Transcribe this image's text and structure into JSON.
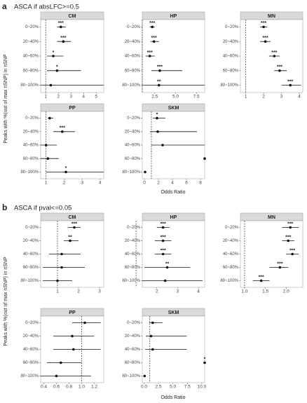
{
  "chart_data": [
    {
      "type": "forest",
      "letter": "a",
      "title": "ASCA if absLFC>=0.5",
      "ylabel": "Peaks with %(out of max nSNP) in nSNP",
      "xlabel": "Odds Ratio",
      "categories": [
        "0~20%",
        "20~40%",
        "40~60%",
        "60~80%",
        "80~100%"
      ],
      "panels": [
        {
          "strip": "CM",
          "xlim": [
            0.6,
            5.6
          ],
          "xticks": [
            1,
            2,
            3,
            4,
            5
          ],
          "refline": 1,
          "values": [
            2.2,
            2.4,
            1.6,
            1.9,
            1.4
          ],
          "lower": [
            1.9,
            1.9,
            1.1,
            1.1,
            0.6
          ],
          "upper": [
            2.6,
            3.0,
            2.4,
            3.8,
            5.6
          ],
          "annotations": [
            "***",
            "***",
            "*",
            "*",
            null
          ]
        },
        {
          "strip": "HP",
          "xlim": [
            1.0,
            8.5
          ],
          "xticks": [
            2.5,
            {
              "value": 5,
              "label": "5.0"
            },
            7.5
          ],
          "refline": 1,
          "values": [
            2.2,
            2.4,
            1.9,
            3.1,
            3.0
          ],
          "lower": [
            1.9,
            2.0,
            1.4,
            2.1,
            1.0
          ],
          "upper": [
            2.5,
            3.0,
            2.5,
            5.8,
            8.5
          ],
          "annotations": [
            "***",
            "***",
            "***",
            "***",
            "**"
          ]
        },
        {
          "strip": "MN",
          "xlim": [
            0.7,
            4.2
          ],
          "xticks": [
            1,
            2,
            3,
            4
          ],
          "refline": 1,
          "values": [
            2.0,
            2.1,
            2.6,
            2.9,
            3.5
          ],
          "lower": [
            1.8,
            1.8,
            2.3,
            2.6,
            3.0
          ],
          "upper": [
            2.2,
            2.4,
            2.9,
            3.3,
            4.1
          ],
          "annotations": [
            "***",
            "***",
            "***",
            "***",
            "***"
          ]
        },
        {
          "strip": "PP",
          "xlim": [
            0.7,
            4.2
          ],
          "xticks": [
            1,
            2,
            3,
            4
          ],
          "refline": 1,
          "values": [
            1.2,
            1.9,
            1.0,
            1.1,
            2.1
          ],
          "lower": [
            1.1,
            1.4,
            0.7,
            0.7,
            1.0
          ],
          "upper": [
            1.4,
            2.6,
            1.6,
            1.7,
            4.2
          ],
          "annotations": [
            null,
            "***",
            null,
            null,
            "*"
          ]
        },
        {
          "strip": "SKM",
          "xlim": [
            -0.3,
            8.6
          ],
          "xticks": [
            0,
            2,
            4,
            6,
            8
          ],
          "refline": 1,
          "values": [
            1.8,
            1.9,
            2.6,
            8.6,
            0.1
          ],
          "lower": [
            1.2,
            0.8,
            1.0,
            null,
            null
          ],
          "upper": [
            3.0,
            7.5,
            8.6,
            null,
            null
          ],
          "annotations": [
            "*",
            null,
            null,
            null,
            null
          ]
        }
      ]
    },
    {
      "type": "forest",
      "letter": "b",
      "title": "ASCA if pval<=0.05",
      "ylabel": "Peaks with %(out of max nSNP) in nSNP",
      "xlabel": "Odds Ratio",
      "categories": [
        "0~20%",
        "20~40%",
        "40~60%",
        "60~80%",
        "80~100%"
      ],
      "panels": [
        {
          "strip": "CM",
          "xlim": [
            0.2,
            3.2
          ],
          "xticks": [
            1,
            2,
            3
          ],
          "refline": 1,
          "values": [
            1.8,
            1.6,
            1.2,
            1.2,
            1.0
          ],
          "lower": [
            1.5,
            1.3,
            0.6,
            0.3,
            0.3
          ],
          "upper": [
            2.1,
            2.0,
            2.1,
            2.3,
            1.7
          ],
          "annotations": [
            "***",
            "**",
            null,
            null,
            null
          ]
        },
        {
          "strip": "HP",
          "xlim": [
            1.3,
            4.3
          ],
          "xticks": [
            2,
            3,
            4
          ],
          "refline": 1,
          "values": [
            2.3,
            2.3,
            2.3,
            2.5,
            2.4
          ],
          "lower": [
            2.0,
            1.9,
            1.9,
            1.4,
            1.3
          ],
          "upper": [
            2.6,
            2.7,
            2.7,
            3.6,
            4.2
          ],
          "annotations": [
            "***",
            "***",
            "***",
            "**",
            null
          ]
        },
        {
          "strip": "MN",
          "xlim": [
            0.9,
            2.4
          ],
          "xticks": [
            {
              "value": 1,
              "label": "1.0"
            },
            1.5,
            {
              "value": 2,
              "label": "2.0"
            }
          ],
          "refline": 1,
          "values": [
            2.1,
            2.05,
            2.15,
            1.85,
            1.4
          ],
          "lower": [
            1.9,
            1.9,
            2.0,
            1.6,
            1.2
          ],
          "upper": [
            2.3,
            2.2,
            2.3,
            2.05,
            1.6
          ],
          "annotations": [
            "***",
            "***",
            "***",
            "***",
            "***"
          ]
        },
        {
          "strip": "PP",
          "xlim": [
            0.35,
            1.35
          ],
          "xticks": [
            0.4,
            0.6,
            0.8,
            {
              "value": 1,
              "label": "1.0"
            },
            1.2
          ],
          "refline": 1,
          "values": [
            1.05,
            0.85,
            0.87,
            0.67,
            0.6
          ],
          "lower": [
            0.85,
            0.55,
            0.55,
            0.45,
            0.35
          ],
          "upper": [
            1.3,
            1.2,
            1.3,
            1.0,
            1.15
          ],
          "annotations": [
            null,
            null,
            null,
            null,
            null
          ]
        },
        {
          "strip": "SKM",
          "xlim": [
            -0.3,
            10.5
          ],
          "xticks": [
            {
              "value": 0,
              "label": "0.0"
            },
            2.5,
            {
              "value": 5,
              "label": "5.0"
            },
            7.5,
            {
              "value": 10,
              "label": "10.0"
            }
          ],
          "refline": 1,
          "values": [
            1.5,
            1.2,
            1.5,
            10.5,
            0.1
          ],
          "lower": [
            0.9,
            0.3,
            0.2,
            null,
            null
          ],
          "upper": [
            3.2,
            7.4,
            7.4,
            null,
            null
          ],
          "annotations": [
            null,
            null,
            null,
            "*",
            null
          ]
        }
      ]
    }
  ]
}
